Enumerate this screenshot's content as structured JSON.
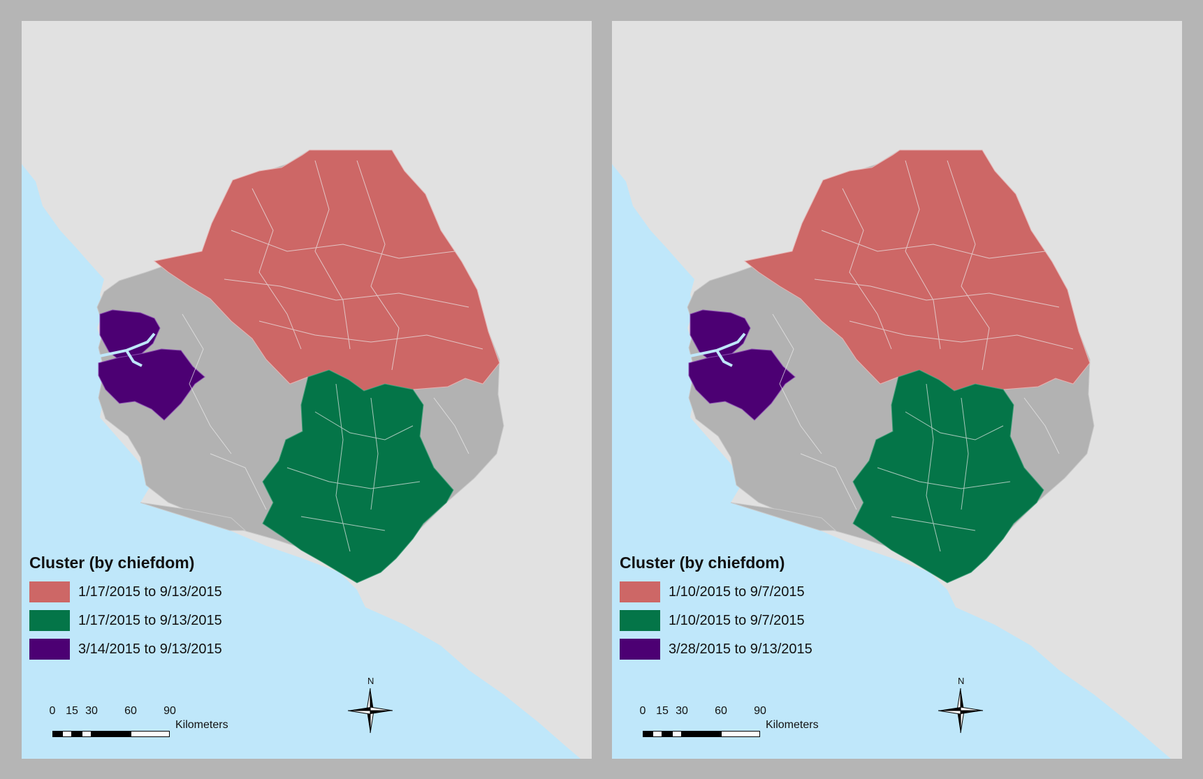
{
  "colors": {
    "cluster_red": "#cd6766",
    "cluster_green": "#047548",
    "cluster_purple": "#4c0073",
    "non_cluster": "#b2b2b2",
    "ocean": "#bfe7fa",
    "land_other": "#e1e1e1"
  },
  "panels": [
    {
      "legend": {
        "title": "Cluster (by chiefdom)",
        "items": [
          {
            "label": "1/17/2015 to 9/13/2015",
            "color": "#cd6766"
          },
          {
            "label": "1/17/2015 to 9/13/2015",
            "color": "#047548"
          },
          {
            "label": "3/14/2015 to 9/13/2015",
            "color": "#4c0073"
          }
        ]
      },
      "scale": {
        "ticks": [
          "0",
          "15",
          "30",
          "60",
          "90"
        ],
        "unit": "Kilometers"
      },
      "north": "N"
    },
    {
      "legend": {
        "title": "Cluster (by chiefdom)",
        "items": [
          {
            "label": "1/10/2015 to 9/7/2015",
            "color": "#cd6766"
          },
          {
            "label": "1/10/2015 to 9/7/2015",
            "color": "#047548"
          },
          {
            "label": "3/28/2015 to 9/13/2015",
            "color": "#4c0073"
          }
        ]
      },
      "scale": {
        "ticks": [
          "0",
          "15",
          "30",
          "60",
          "90"
        ],
        "unit": "Kilometers"
      },
      "north": "N"
    }
  ]
}
